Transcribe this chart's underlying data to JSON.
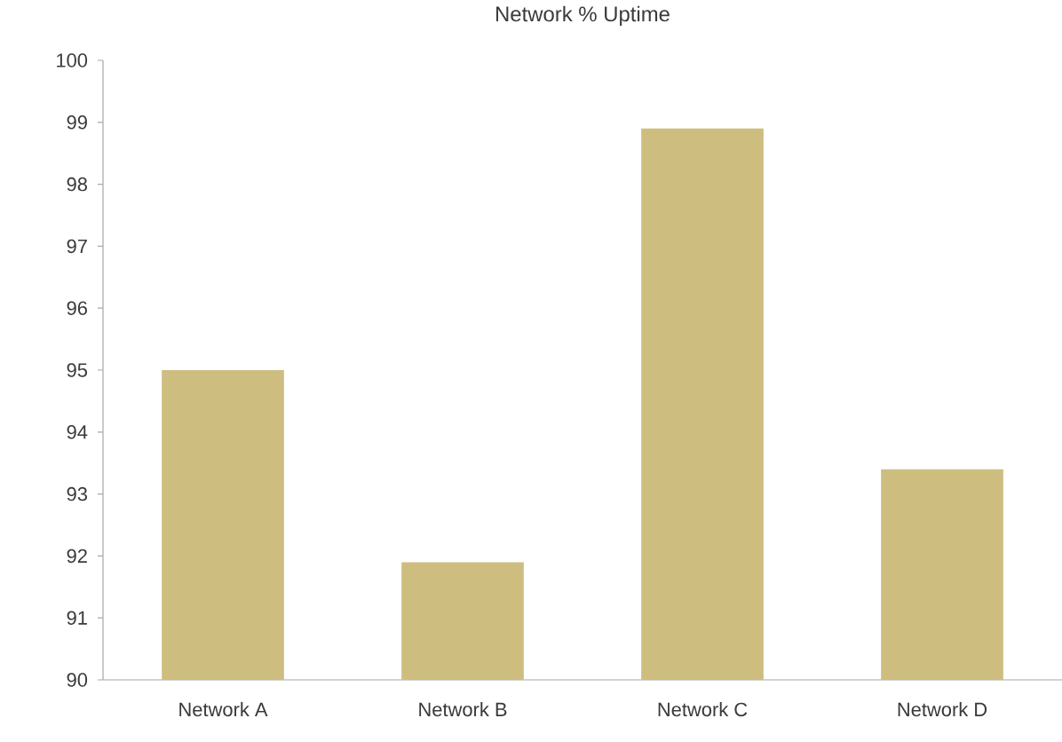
{
  "chart_data": {
    "type": "bar",
    "title": "Network % Uptime",
    "categories": [
      "Network A",
      "Network B",
      "Network C",
      "Network D"
    ],
    "values": [
      95.0,
      91.9,
      98.9,
      93.4
    ],
    "color": "#cdbe80",
    "ylim": [
      90,
      100
    ],
    "yticks": [
      90,
      91,
      92,
      93,
      94,
      95,
      96,
      97,
      98,
      99,
      100
    ]
  }
}
